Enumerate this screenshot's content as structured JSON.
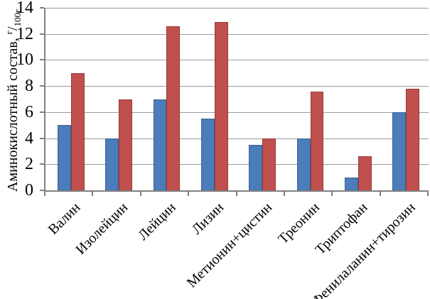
{
  "chart_data": {
    "type": "bar",
    "title": "",
    "ylabel_prefix": "Аминокислотный состав, ",
    "ylabel_unit_numerator": "г",
    "ylabel_unit_slash": "/",
    "ylabel_unit_denominator": "100г",
    "categories": [
      "Валин",
      "Изолейцин",
      "Лейцин",
      "Лизин",
      "Метионин+цистин",
      "Треонин",
      "Триптофан",
      "Фенилаланин+тирозин"
    ],
    "series": [
      {
        "name": "series-blue",
        "color": "#4b7dbb",
        "border_color": "#39618f",
        "values": [
          5.0,
          4.0,
          7.0,
          5.5,
          3.5,
          4.0,
          1.0,
          6.0
        ]
      },
      {
        "name": "series-red",
        "color": "#c0504d",
        "border_color": "#953c3a",
        "values": [
          9.0,
          7.0,
          12.6,
          12.9,
          4.0,
          7.6,
          2.6,
          7.8
        ]
      }
    ],
    "ylim": [
      0,
      14
    ],
    "ytick_step": 2,
    "yticks": [
      0,
      2,
      4,
      6,
      8,
      10,
      12,
      14
    ],
    "grid": true,
    "legend": false,
    "gridline_color": "#9b9b9b",
    "axis_color": "#808080"
  }
}
